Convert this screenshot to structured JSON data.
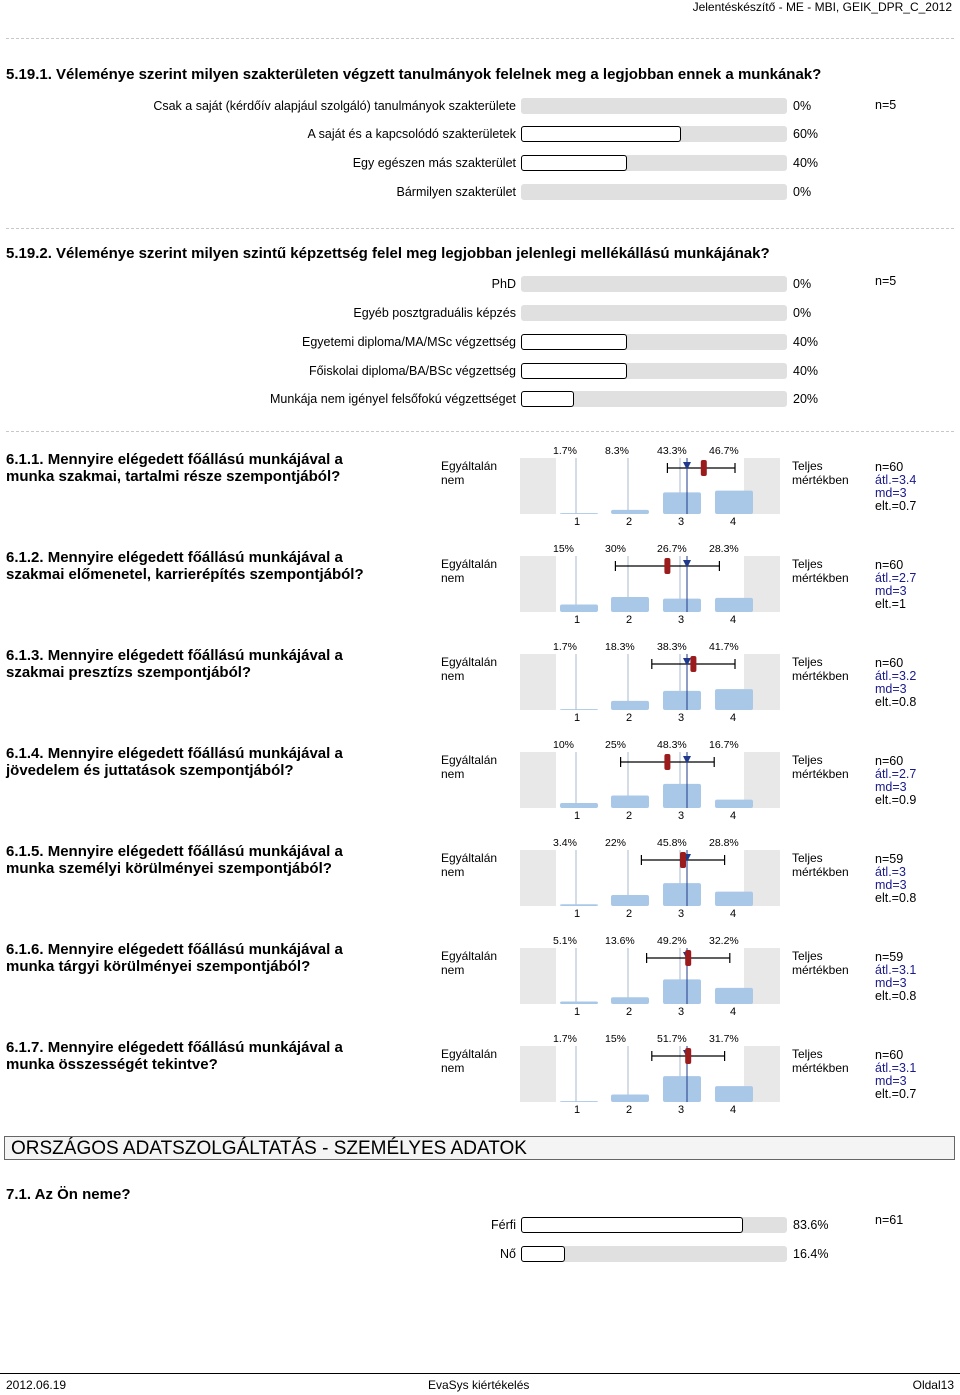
{
  "header": {
    "title": "Jelentéskészítő - ME - MBI, GEIK_DPR_C_2012"
  },
  "q5_19_1": {
    "title": "5.19.1. Véleménye szerint milyen szakterületen végzett tanulmányok felelnek meg a legjobban ennek a munkának?",
    "n": "n=5",
    "rows": [
      {
        "label": "Csak a saját (kérdőív alapjául szolgáló) tanulmányok szakterülete",
        "pct": "0%",
        "value": 0
      },
      {
        "label": "A saját és a kapcsolódó szakterületek",
        "pct": "60%",
        "value": 60
      },
      {
        "label": "Egy egészen más szakterület",
        "pct": "40%",
        "value": 40
      },
      {
        "label": "Bármilyen szakterület",
        "pct": "0%",
        "value": 0
      }
    ]
  },
  "q5_19_2": {
    "title": "5.19.2. Véleménye szerint milyen szintű képzettség felel meg legjobban jelenlegi mellékállású munkájának?",
    "n": "n=5",
    "rows": [
      {
        "label": "PhD",
        "pct": "0%",
        "value": 0
      },
      {
        "label": "Egyéb posztgraduális képzés",
        "pct": "0%",
        "value": 0
      },
      {
        "label": "Egyetemi diploma/MA/MSc végzettség",
        "pct": "40%",
        "value": 40
      },
      {
        "label": "Főiskolai diploma/BA/BSc végzettség",
        "pct": "40%",
        "value": 40
      },
      {
        "label": "Munkája nem igényel felsőfokú végzettséget",
        "pct": "20%",
        "value": 20
      }
    ]
  },
  "scale": {
    "left": "Egyáltalán nem",
    "right": "Teljes mértékben",
    "ticks": [
      "1",
      "2",
      "3",
      "4"
    ]
  },
  "scales": [
    {
      "title": "6.1.1. Mennyire elégedett főállású munkájával a munka szakmai, tartalmi része szempontjából?",
      "pcts": [
        "1.7%",
        "8.3%",
        "43.3%",
        "46.7%"
      ],
      "values": [
        1.7,
        8.3,
        43.3,
        46.7
      ],
      "n": "n=60",
      "avg": "átl.=3.4",
      "md": "md=3",
      "dev": "elt.=0.7",
      "mean": 3.4,
      "sd": 0.7
    },
    {
      "title": "6.1.2. Mennyire elégedett főállású munkájával a szakmai előmenetel, karrierépítés szempontjából?",
      "pcts": [
        "15%",
        "30%",
        "26.7%",
        "28.3%"
      ],
      "values": [
        15,
        30,
        26.7,
        28.3
      ],
      "n": "n=60",
      "avg": "átl.=2.7",
      "md": "md=3",
      "dev": "elt.=1",
      "mean": 2.7,
      "sd": 1
    },
    {
      "title": "6.1.3. Mennyire elégedett főállású munkájával a szakmai presztízs szempontjából?",
      "pcts": [
        "1.7%",
        "18.3%",
        "38.3%",
        "41.7%"
      ],
      "values": [
        1.7,
        18.3,
        38.3,
        41.7
      ],
      "n": "n=60",
      "avg": "átl.=3.2",
      "md": "md=3",
      "dev": "elt.=0.8",
      "mean": 3.2,
      "sd": 0.8
    },
    {
      "title": "6.1.4. Mennyire elégedett főállású munkájával a jövedelem és juttatások szempontjából?",
      "pcts": [
        "10%",
        "25%",
        "48.3%",
        "16.7%"
      ],
      "values": [
        10,
        25,
        48.3,
        16.7
      ],
      "n": "n=60",
      "avg": "átl.=2.7",
      "md": "md=3",
      "dev": "elt.=0.9",
      "mean": 2.7,
      "sd": 0.9
    },
    {
      "title": "6.1.5. Mennyire elégedett főállású munkájával a munka személyi körülményei szempontjából?",
      "pcts": [
        "3.4%",
        "22%",
        "45.8%",
        "28.8%"
      ],
      "values": [
        3.4,
        22,
        45.8,
        28.8
      ],
      "n": "n=59",
      "avg": "átl.=3",
      "md": "md=3",
      "dev": "elt.=0.8",
      "mean": 3.0,
      "sd": 0.8
    },
    {
      "title": "6.1.6. Mennyire elégedett főállású munkájával a munka tárgyi körülményei szempontjából?",
      "pcts": [
        "5.1%",
        "13.6%",
        "49.2%",
        "32.2%"
      ],
      "values": [
        5.1,
        13.6,
        49.2,
        32.2
      ],
      "n": "n=59",
      "avg": "átl.=3.1",
      "md": "md=3",
      "dev": "elt.=0.8",
      "mean": 3.1,
      "sd": 0.8
    },
    {
      "title": "6.1.7. Mennyire elégedett főállású munkájával a munka összességét tekintve?",
      "pcts": [
        "1.7%",
        "15%",
        "51.7%",
        "31.7%"
      ],
      "values": [
        1.7,
        15,
        51.7,
        31.7
      ],
      "n": "n=60",
      "avg": "átl.=3.1",
      "md": "md=3",
      "dev": "elt.=0.7",
      "mean": 3.1,
      "sd": 0.7
    }
  ],
  "section": {
    "title": "ORSZÁGOS ADATSZOLGÁLTATÁS - SZEMÉLYES ADATOK"
  },
  "q7_1": {
    "title": "7.1. Az Ön neme?",
    "n": "n=61",
    "rows": [
      {
        "label": "Férfi",
        "pct": "83.6%",
        "value": 83.6
      },
      {
        "label": "Nő",
        "pct": "16.4%",
        "value": 16.4
      }
    ]
  },
  "footer": {
    "date": "2012.06.19",
    "center": "EvaSys kiértékelés",
    "page": "Oldal13"
  },
  "chart_data": [
    {
      "type": "bar",
      "categories": [
        "Csak a saját (kérdőív alapjául szolgáló) tanulmányok szakterülete",
        "A saját és a kapcsolódó szakterületek",
        "Egy egészen más szakterület",
        "Bármilyen szakterület"
      ],
      "values": [
        0,
        60,
        40,
        0
      ],
      "title": "5.19.1. Véleménye szerint milyen szakterületen végzett tanulmányok felelnek meg a legjobban ennek a munkának?",
      "ylim": [
        0,
        100
      ]
    },
    {
      "type": "bar",
      "categories": [
        "PhD",
        "Egyéb posztgraduális képzés",
        "Egyetemi diploma/MA/MSc végzettség",
        "Főiskolai diploma/BA/BSc végzettség",
        "Munkája nem igényel felsőfokú végzettséget"
      ],
      "values": [
        0,
        0,
        40,
        40,
        20
      ],
      "title": "5.19.2. Véleménye szerint milyen szintű képzettség felel meg legjobban jelenlegi mellékállású munkájának?",
      "ylim": [
        0,
        100
      ]
    },
    {
      "type": "bar",
      "categories": [
        "1",
        "2",
        "3",
        "4"
      ],
      "series": [
        {
          "name": "6.1.1.",
          "values": [
            1.7,
            8.3,
            43.3,
            46.7
          ]
        },
        {
          "name": "6.1.2.",
          "values": [
            15,
            30,
            26.7,
            28.3
          ]
        },
        {
          "name": "6.1.3.",
          "values": [
            1.7,
            18.3,
            38.3,
            41.7
          ]
        },
        {
          "name": "6.1.4.",
          "values": [
            10,
            25,
            48.3,
            16.7
          ]
        },
        {
          "name": "6.1.5.",
          "values": [
            3.4,
            22,
            45.8,
            28.8
          ]
        },
        {
          "name": "6.1.6.",
          "values": [
            5.1,
            13.6,
            49.2,
            32.2
          ]
        },
        {
          "name": "6.1.7.",
          "values": [
            1.7,
            15,
            51.7,
            31.7
          ]
        }
      ]
    },
    {
      "type": "bar",
      "categories": [
        "Férfi",
        "Nő"
      ],
      "values": [
        83.6,
        16.4
      ],
      "title": "7.1. Az Ön neme?",
      "ylim": [
        0,
        100
      ]
    }
  ],
  "colors": {
    "bar_blue": "#a9c8e8",
    "median_marker": "#1f3a8a",
    "mean_marker": "#9b1c1c",
    "bar_bg": "#e0e0e0"
  }
}
